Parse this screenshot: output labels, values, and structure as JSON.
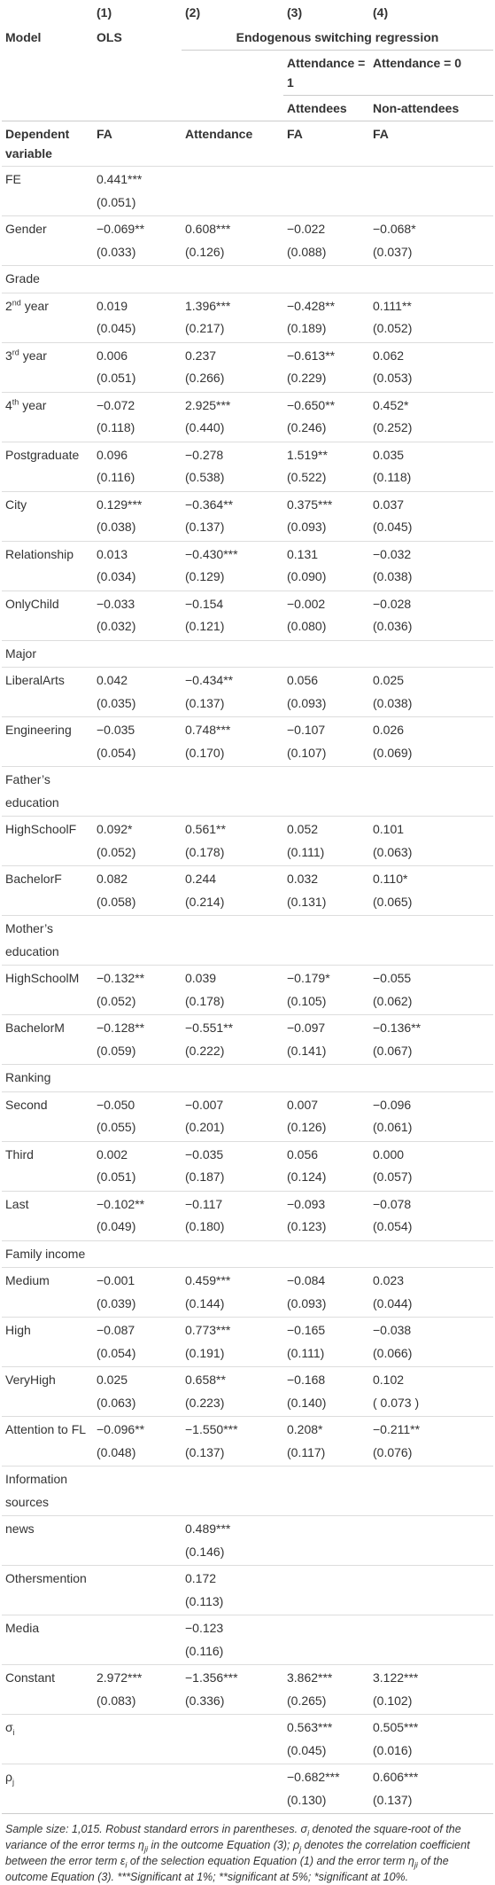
{
  "header": {
    "col_numbers": [
      "(1)",
      "(2)",
      "(3)",
      "(4)"
    ],
    "model_label": "Model",
    "ols": "OLS",
    "esr": "Endogenous switching regression",
    "attendance_1": "Attendance = 1",
    "attendance_0": "Attendance = 0",
    "attendees": "Attendees",
    "non_attendees": "Non-attendees",
    "dep_var_label": "Dependent variable",
    "dep_vars": [
      "FA",
      "Attendance",
      "FA",
      "FA"
    ]
  },
  "rows": [
    {
      "label": "FE",
      "values": [
        "0.441***",
        null,
        null,
        null
      ],
      "se": [
        "(0.051)",
        null,
        null,
        null
      ]
    },
    {
      "label": "Gender",
      "values": [
        "−0.069**",
        "0.608***",
        "−0.022",
        "−0.068*"
      ],
      "se": [
        "(0.033)",
        "(0.126)",
        "(0.088)",
        "(0.037)"
      ]
    },
    {
      "label": "Grade"
    },
    {
      "label": [
        {
          "text": "2"
        },
        {
          "sup": "nd"
        },
        {
          "text": " year"
        }
      ],
      "values": [
        "0.019",
        "1.396***",
        "−0.428**",
        "0.111**"
      ],
      "se": [
        "(0.045)",
        "(0.217)",
        "(0.189)",
        "(0.052)"
      ]
    },
    {
      "label": [
        {
          "text": "3"
        },
        {
          "sup": "rd"
        },
        {
          "text": " year"
        }
      ],
      "values": [
        "0.006",
        "0.237",
        "−0.613**",
        "0.062"
      ],
      "se": [
        "(0.051)",
        "(0.266)",
        "(0.229)",
        "(0.053)"
      ]
    },
    {
      "label": [
        {
          "text": "4"
        },
        {
          "sup": "th"
        },
        {
          "text": " year"
        }
      ],
      "values": [
        "−0.072",
        "2.925***",
        "−0.650**",
        "0.452*"
      ],
      "se": [
        "(0.118)",
        "(0.440)",
        "(0.246)",
        "(0.252)"
      ]
    },
    {
      "label": "Postgraduate",
      "values": [
        "0.096",
        "−0.278",
        "1.519**",
        "0.035"
      ],
      "se": [
        "(0.116)",
        "(0.538)",
        "(0.522)",
        "(0.118)"
      ]
    },
    {
      "label": "City",
      "values": [
        "0.129***",
        "−0.364**",
        "0.375***",
        "0.037"
      ],
      "se": [
        "(0.038)",
        "(0.137)",
        "(0.093)",
        "(0.045)"
      ]
    },
    {
      "label": "Relationship",
      "values": [
        "0.013",
        "−0.430***",
        "0.131",
        "−0.032"
      ],
      "se": [
        "(0.034)",
        "(0.129)",
        "(0.090)",
        "(0.038)"
      ]
    },
    {
      "label": "OnlyChild",
      "values": [
        "−0.033",
        "−0.154",
        "−0.002",
        "−0.028"
      ],
      "se": [
        "(0.032)",
        "(0.121)",
        "(0.080)",
        "(0.036)"
      ]
    },
    {
      "label": "Major"
    },
    {
      "label": "LiberalArts",
      "values": [
        "0.042",
        "−0.434**",
        "0.056",
        "0.025"
      ],
      "se": [
        "(0.035)",
        "(0.137)",
        "(0.093)",
        "(0.038)"
      ]
    },
    {
      "label": "Engineering",
      "values": [
        "−0.035",
        "0.748***",
        "−0.107",
        "0.026"
      ],
      "se": [
        "(0.054)",
        "(0.170)",
        "(0.107)",
        "(0.069)"
      ]
    },
    {
      "label": "Father’s education"
    },
    {
      "label": "HighSchoolF",
      "values": [
        "0.092*",
        "0.561**",
        "0.052",
        "0.101"
      ],
      "se": [
        "(0.052)",
        "(0.178)",
        "(0.111)",
        "(0.063)"
      ]
    },
    {
      "label": "BachelorF",
      "values": [
        "0.082",
        "0.244",
        "0.032",
        "0.110*"
      ],
      "se": [
        "(0.058)",
        "(0.214)",
        "(0.131)",
        "(0.065)"
      ]
    },
    {
      "label": "Mother’s education"
    },
    {
      "label": "HighSchoolM",
      "values": [
        "−0.132**",
        "0.039",
        "−0.179*",
        "−0.055"
      ],
      "se": [
        "(0.052)",
        "(0.178)",
        "(0.105)",
        "(0.062)"
      ]
    },
    {
      "label": "BachelorM",
      "values": [
        "−0.128**",
        "−0.551**",
        "−0.097",
        "−0.136**"
      ],
      "se": [
        "(0.059)",
        "(0.222)",
        "(0.141)",
        "(0.067)"
      ]
    },
    {
      "label": "Ranking"
    },
    {
      "label": "Second",
      "values": [
        "−0.050",
        "−0.007",
        "0.007",
        "−0.096"
      ],
      "se": [
        "(0.055)",
        "(0.201)",
        "(0.126)",
        "(0.061)"
      ]
    },
    {
      "label": "Third",
      "values": [
        "0.002",
        "−0.035",
        "0.056",
        "0.000"
      ],
      "se": [
        "(0.051)",
        "(0.187)",
        "(0.124)",
        "(0.057)"
      ]
    },
    {
      "label": "Last",
      "values": [
        "−0.102**",
        "−0.117",
        "−0.093",
        "−0.078"
      ],
      "se": [
        "(0.049)",
        "(0.180)",
        "(0.123)",
        "(0.054)"
      ]
    },
    {
      "label": "Family income"
    },
    {
      "label": "Medium",
      "values": [
        "−0.001",
        "0.459***",
        "−0.084",
        "0.023"
      ],
      "se": [
        "(0.039)",
        "(0.144)",
        "(0.093)",
        "(0.044)"
      ]
    },
    {
      "label": "High",
      "values": [
        "−0.087",
        "0.773***",
        "−0.165",
        "−0.038"
      ],
      "se": [
        "(0.054)",
        "(0.191)",
        "(0.111)",
        "(0.066)"
      ]
    },
    {
      "label": "VeryHigh",
      "values": [
        "0.025",
        "0.658**",
        "−0.168",
        "0.102"
      ],
      "se": [
        "(0.063)",
        "(0.223)",
        "(0.140)",
        "( 0.073 )"
      ]
    },
    {
      "label": "Attention to FL",
      "values": [
        "−0.096**",
        "−1.550***",
        "0.208*",
        "−0.211**"
      ],
      "se": [
        "(0.048)",
        "(0.137)",
        "(0.117)",
        "(0.076)"
      ]
    },
    {
      "label": "Information sources"
    },
    {
      "label": "news",
      "values": [
        null,
        "0.489***",
        null,
        null
      ],
      "se": [
        null,
        "(0.146)",
        null,
        null
      ]
    },
    {
      "label": "Othersmention",
      "values": [
        null,
        "0.172",
        null,
        null
      ],
      "se": [
        null,
        "(0.113)",
        null,
        null
      ]
    },
    {
      "label": "Media",
      "values": [
        null,
        "−0.123",
        null,
        null
      ],
      "se": [
        null,
        "(0.116)",
        null,
        null
      ]
    },
    {
      "label": "Constant",
      "values": [
        "2.972***",
        "−1.356***",
        "3.862***",
        "3.122***"
      ],
      "se": [
        "(0.083)",
        "(0.336)",
        "(0.265)",
        "(0.102)"
      ]
    },
    {
      "label": [
        {
          "text": "σ"
        },
        {
          "sub": "i"
        }
      ],
      "values": [
        null,
        null,
        "0.563***",
        "0.505***"
      ],
      "se": [
        null,
        null,
        "(0.045)",
        "(0.016)"
      ]
    },
    {
      "label": [
        {
          "text": "ρ"
        },
        {
          "sub": "j"
        }
      ],
      "values": [
        null,
        null,
        "−0.682***",
        "0.606***"
      ],
      "se": [
        null,
        null,
        "(0.130)",
        "(0.137)"
      ]
    }
  ],
  "note": [
    {
      "text": "Sample size: 1,015. Robust standard errors in parentheses. σ"
    },
    {
      "sub": "i"
    },
    {
      "text": " denoted the square-root of the variance of the error terms η"
    },
    {
      "sub": "ji"
    },
    {
      "text": " in the outcome Equation (3); ρ"
    },
    {
      "sub": "j"
    },
    {
      "text": " denotes the correlation coefficient between the error term ε"
    },
    {
      "sub": "i"
    },
    {
      "text": " of the selection equation Equation (1) and the error term η"
    },
    {
      "sub": "ji"
    },
    {
      "text": " of the outcome Equation (3). ***Significant at 1%; **significant at 5%; *significant at 10%."
    }
  ]
}
